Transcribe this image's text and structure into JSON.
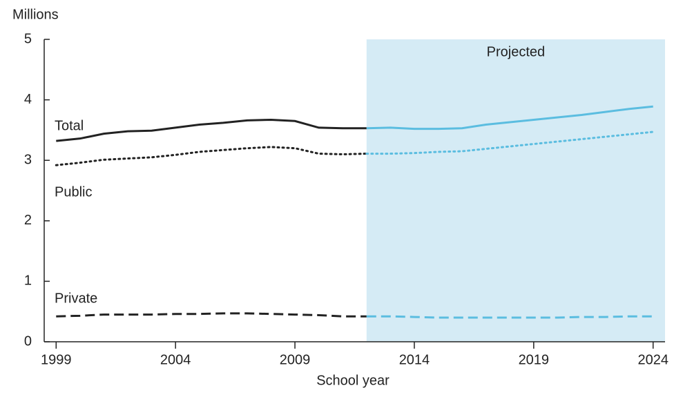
{
  "chart_data": {
    "type": "line",
    "y_unit": "Millions",
    "x_label": "School year",
    "projected_label": "Projected",
    "projected_start": 2012,
    "projected_color": "#5bbde0",
    "projected_fill": "#d5ebf5",
    "x": [
      1999,
      2000,
      2001,
      2002,
      2003,
      2004,
      2005,
      2006,
      2007,
      2008,
      2009,
      2010,
      2011,
      2012,
      2013,
      2014,
      2015,
      2016,
      2017,
      2018,
      2019,
      2020,
      2021,
      2022,
      2023,
      2024
    ],
    "series": [
      {
        "name": "Total",
        "color": "#222222",
        "style": "solid",
        "values": [
          3.32,
          3.36,
          3.44,
          3.48,
          3.49,
          3.54,
          3.59,
          3.62,
          3.66,
          3.67,
          3.65,
          3.54,
          3.53,
          3.53,
          3.54,
          3.52,
          3.52,
          3.53,
          3.59,
          3.63,
          3.67,
          3.71,
          3.75,
          3.8,
          3.85,
          3.89
        ]
      },
      {
        "name": "Public",
        "color": "#222222",
        "style": "dotted",
        "values": [
          2.92,
          2.96,
          3.01,
          3.03,
          3.05,
          3.09,
          3.14,
          3.17,
          3.2,
          3.22,
          3.2,
          3.11,
          3.1,
          3.11,
          3.11,
          3.12,
          3.14,
          3.15,
          3.19,
          3.23,
          3.27,
          3.31,
          3.35,
          3.39,
          3.43,
          3.47
        ]
      },
      {
        "name": "Private",
        "color": "#222222",
        "style": "dashed",
        "values": [
          0.42,
          0.43,
          0.45,
          0.45,
          0.45,
          0.46,
          0.46,
          0.47,
          0.47,
          0.46,
          0.45,
          0.44,
          0.42,
          0.42,
          0.42,
          0.41,
          0.4,
          0.4,
          0.4,
          0.4,
          0.4,
          0.4,
          0.41,
          0.41,
          0.42,
          0.42
        ]
      }
    ],
    "xlim": [
      1998.5,
      2024.5
    ],
    "xticks": [
      1999,
      2004,
      2009,
      2014,
      2019,
      2024
    ],
    "ylim": [
      0,
      5
    ],
    "yticks": [
      0,
      1,
      2,
      3,
      4,
      5
    ]
  }
}
